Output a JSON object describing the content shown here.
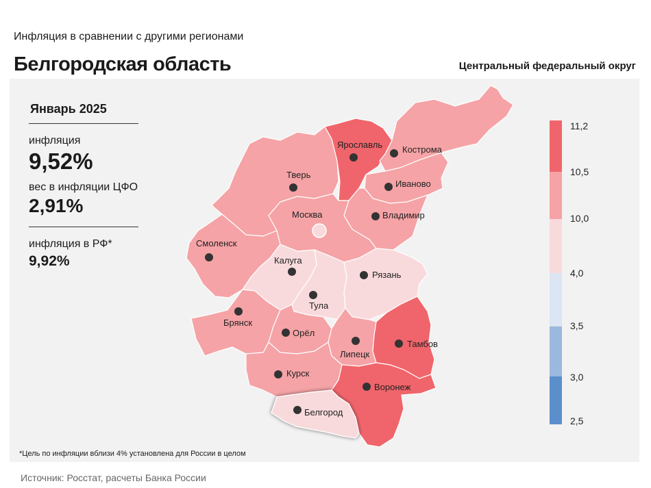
{
  "header": {
    "subtitle": "Инфляция в сравнении с другими регионами",
    "title": "Белгородская область",
    "district": "Центральный федеральный округ"
  },
  "stats": {
    "period": "Январь 2025",
    "inflation_label": "инфляция",
    "inflation_value": "9,52%",
    "weight_label": "вес в инфляции ЦФО",
    "weight_value": "2,91%",
    "russia_label": "инфляция в РФ*",
    "russia_value": "9,92%"
  },
  "legend": {
    "ticks": [
      "11,2",
      "10,5",
      "10,0",
      "4,0",
      "3,5",
      "3,0",
      "2,5"
    ],
    "colors": [
      "#f0656b",
      "#f5a3a6",
      "#f9dadc",
      "#dbe5f3",
      "#9bb8de",
      "#5b8fcc"
    ]
  },
  "regions": [
    {
      "name": "Тверь",
      "color": "#f5a3a6"
    },
    {
      "name": "Ярославль",
      "color": "#f0656b"
    },
    {
      "name": "Кострома",
      "color": "#f5a3a6"
    },
    {
      "name": "Иваново",
      "color": "#f5a3a6"
    },
    {
      "name": "Владимир",
      "color": "#f5a3a6"
    },
    {
      "name": "Москва",
      "color": "#f5a3a6"
    },
    {
      "name": "Смоленск",
      "color": "#f5a3a6"
    },
    {
      "name": "Калуга",
      "color": "#f9dadc"
    },
    {
      "name": "Тула",
      "color": "#f9dadc"
    },
    {
      "name": "Рязань",
      "color": "#f9dadc"
    },
    {
      "name": "Брянск",
      "color": "#f5a3a6"
    },
    {
      "name": "Орёл",
      "color": "#f5a3a6"
    },
    {
      "name": "Липецк",
      "color": "#f5a3a6"
    },
    {
      "name": "Тамбов",
      "color": "#f0656b"
    },
    {
      "name": "Курск",
      "color": "#f5a3a6"
    },
    {
      "name": "Воронеж",
      "color": "#f0656b"
    },
    {
      "name": "Белгород",
      "color": "#f9dadc"
    }
  ],
  "note": "*Цель по инфляции вблизи 4% установлена для России в целом",
  "source": "Источник: Росстат, расчеты Банка России"
}
